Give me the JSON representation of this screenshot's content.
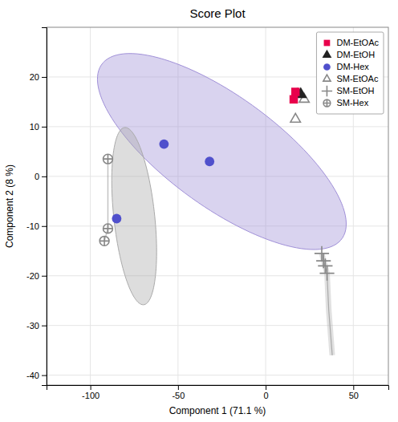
{
  "chart_data": {
    "type": "scatter",
    "title": "Score Plot",
    "x_label": "Component 1 (71.1 %)",
    "y_label": "Component 2 (8 %)",
    "xlim": [
      -125,
      70
    ],
    "ylim": [
      -42,
      30
    ],
    "xticks": [
      -100,
      -50,
      0,
      50
    ],
    "yticks": [
      -40,
      -30,
      -20,
      -10,
      0,
      10,
      20
    ],
    "grid": true,
    "legend": "upper right",
    "series": [
      {
        "name": "DM-EtOAc",
        "color": "#e8004b",
        "marker": "square",
        "x": [
          17,
          16
        ],
        "values": [
          17.0,
          15.5
        ]
      },
      {
        "name": "DM-EtOH",
        "color": "#222222",
        "marker": "triangle",
        "x": [
          20
        ],
        "values": [
          16.5
        ]
      },
      {
        "name": "DM-Hex",
        "color": "#5050cc",
        "marker": "circle",
        "x": [
          -58,
          -32,
          -85
        ],
        "values": [
          6.5,
          3.0,
          -8.5
        ]
      },
      {
        "name": "SM-EtOAc",
        "color": "#888888",
        "marker": "triangle-open",
        "x": [
          18,
          22,
          17
        ],
        "values": [
          16.5,
          15.5,
          11.5
        ]
      },
      {
        "name": "SM-EtOH",
        "color": "#888888",
        "marker": "plus",
        "x": [
          32,
          33,
          34,
          35
        ],
        "values": [
          -15.5,
          -17.0,
          -18.0,
          -19.5
        ]
      },
      {
        "name": "SM-Hex",
        "color": "#888888",
        "marker": "circled-plus",
        "line_style": "solid",
        "x": [
          -90,
          -90,
          -92
        ],
        "values": [
          3.5,
          -10.5,
          -13.0
        ]
      }
    ],
    "trend_line": {
      "color": "#aaaaaa",
      "x": [
        32,
        35,
        36,
        38
      ],
      "values": [
        -15.5,
        -19.5,
        -27.0,
        -36.0
      ]
    },
    "ellipses": [
      {
        "cx": -25,
        "cy": 5,
        "width": 145,
        "height": 26,
        "angle": -12,
        "color": "#a090d8"
      },
      {
        "cx": -75,
        "cy": -8,
        "width": 38,
        "height": 22,
        "angle": -65,
        "color": "#aaaaaa"
      }
    ]
  }
}
